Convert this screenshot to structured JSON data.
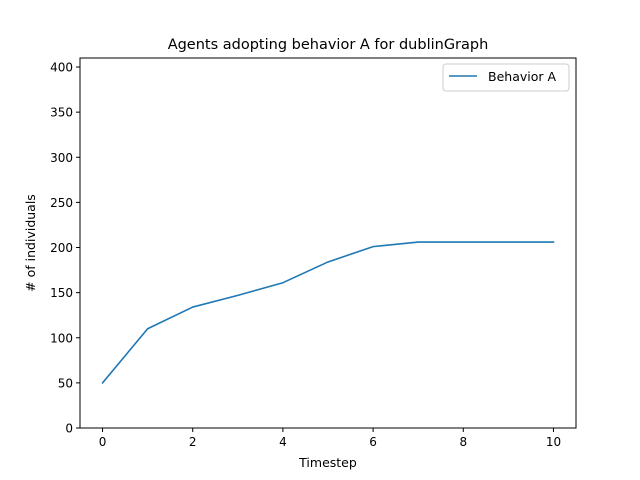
{
  "chart_data": {
    "type": "line",
    "title": "Agents adopting behavior A for dublinGraph",
    "xlabel": "Timestep",
    "ylabel": "# of individuals",
    "xlim": [
      -0.5,
      10.5
    ],
    "ylim": [
      0,
      410
    ],
    "xticks": [
      0,
      2,
      4,
      6,
      8,
      10
    ],
    "yticks": [
      0,
      50,
      100,
      150,
      200,
      250,
      300,
      350,
      400
    ],
    "grid": false,
    "legend_position": "top-right",
    "x": [
      0,
      1,
      2,
      3,
      4,
      5,
      6,
      7,
      8,
      9,
      10
    ],
    "series": [
      {
        "name": "Behavior A",
        "color": "#1f77b4",
        "values": [
          50,
          110,
          134,
          147,
          161,
          184,
          201,
          206,
          206,
          206,
          206
        ]
      }
    ]
  }
}
